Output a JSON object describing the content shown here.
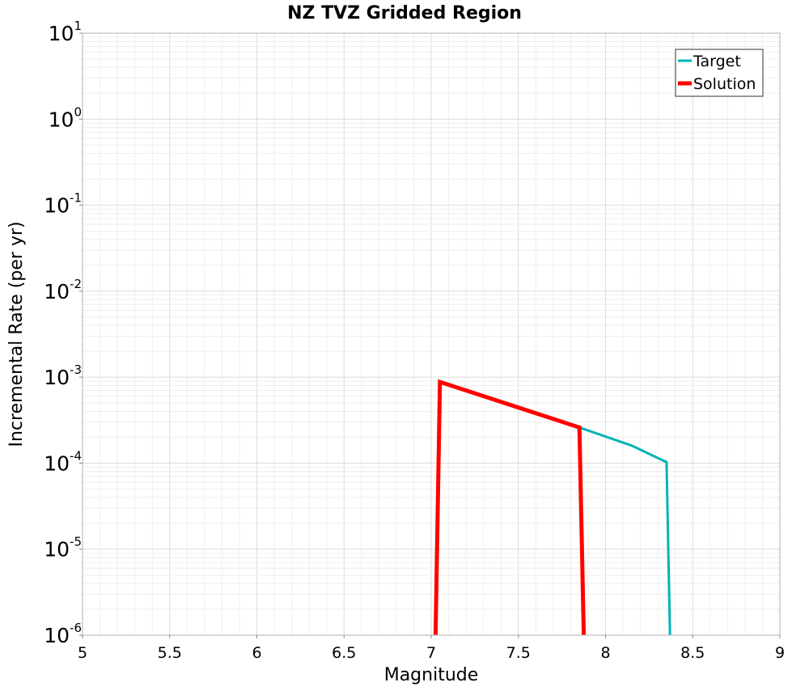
{
  "chart_data": {
    "type": "line",
    "title": "NZ TVZ Gridded Region",
    "xlabel": "Magnitude",
    "ylabel": "Incremental Rate (per yr)",
    "xlim": [
      5,
      9
    ],
    "ylim_log10": [
      -6,
      1
    ],
    "y_scale": "log",
    "grid": true,
    "legend_position": "top-right",
    "x_ticks": [
      {
        "value": 5,
        "label": "5"
      },
      {
        "value": 5.5,
        "label": "5.5"
      },
      {
        "value": 6,
        "label": "6"
      },
      {
        "value": 6.5,
        "label": "6.5"
      },
      {
        "value": 7,
        "label": "7"
      },
      {
        "value": 7.5,
        "label": "7.5"
      },
      {
        "value": 8,
        "label": "8"
      },
      {
        "value": 8.5,
        "label": "8.5"
      },
      {
        "value": 9,
        "label": "9"
      }
    ],
    "y_ticks": [
      {
        "exp": 1,
        "base": "10",
        "sup": "1"
      },
      {
        "exp": 0,
        "base": "10",
        "sup": "0"
      },
      {
        "exp": -1,
        "base": "10",
        "sup": "-1"
      },
      {
        "exp": -2,
        "base": "10",
        "sup": "-2"
      },
      {
        "exp": -3,
        "base": "10",
        "sup": "-3"
      },
      {
        "exp": -4,
        "base": "10",
        "sup": "-4"
      },
      {
        "exp": -5,
        "base": "10",
        "sup": "-5"
      },
      {
        "exp": -6,
        "base": "10",
        "sup": "-6"
      }
    ],
    "series": [
      {
        "name": "Target",
        "color": "#00b4b4",
        "points": [
          [
            7.025,
            1e-06
          ],
          [
            7.05,
            0.00088
          ],
          [
            7.85,
            0.00026
          ],
          [
            8.15,
            0.00016
          ],
          [
            8.35,
            0.000103
          ],
          [
            8.37,
            1e-06
          ]
        ]
      },
      {
        "name": "Solution",
        "color": "#ff0000",
        "points": [
          [
            7.025,
            1e-06
          ],
          [
            7.05,
            0.00088
          ],
          [
            7.85,
            0.00026
          ],
          [
            7.875,
            1e-06
          ]
        ]
      }
    ]
  }
}
